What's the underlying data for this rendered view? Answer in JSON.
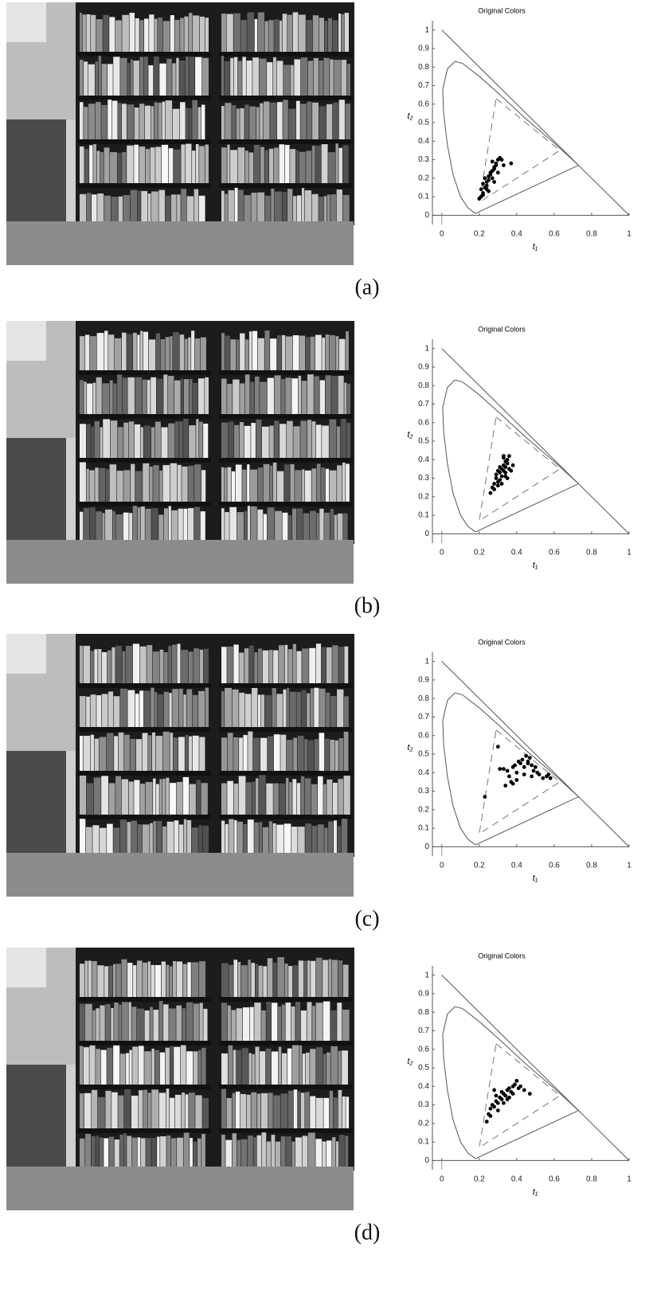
{
  "chart_data": [
    {
      "type": "scatter",
      "title": "Original Colors",
      "x_label": "t₁",
      "y_label": "t₂",
      "color": "#000000",
      "xlim": [
        -0.05,
        1
      ],
      "ylim": [
        -0.05,
        1.05
      ],
      "xticks": [
        0,
        0.2,
        0.4,
        0.6,
        0.8,
        1
      ],
      "yticks": [
        0,
        0.1,
        0.2,
        0.3,
        0.4,
        0.5,
        0.6,
        0.7,
        0.8,
        0.9,
        1
      ],
      "x": [
        0.2,
        0.21,
        0.22,
        0.21,
        0.23,
        0.22,
        0.24,
        0.23,
        0.25,
        0.24,
        0.26,
        0.25,
        0.27,
        0.26,
        0.28,
        0.27,
        0.29,
        0.28,
        0.3,
        0.29,
        0.31,
        0.3,
        0.32,
        0.22,
        0.25,
        0.28,
        0.33,
        0.37,
        0.24,
        0.27
      ],
      "values": [
        0.09,
        0.1,
        0.12,
        0.14,
        0.15,
        0.17,
        0.18,
        0.2,
        0.21,
        0.16,
        0.23,
        0.19,
        0.24,
        0.22,
        0.26,
        0.2,
        0.28,
        0.25,
        0.3,
        0.27,
        0.31,
        0.23,
        0.3,
        0.11,
        0.13,
        0.18,
        0.27,
        0.28,
        0.14,
        0.29
      ]
    },
    {
      "type": "scatter",
      "title": "Original Colors",
      "x_label": "t₁",
      "y_label": "t₂",
      "color": "#000000",
      "xlim": [
        -0.05,
        1
      ],
      "ylim": [
        -0.05,
        1.05
      ],
      "xticks": [
        0,
        0.2,
        0.4,
        0.6,
        0.8,
        1
      ],
      "yticks": [
        0,
        0.1,
        0.2,
        0.3,
        0.4,
        0.5,
        0.6,
        0.7,
        0.8,
        0.9,
        1
      ],
      "x": [
        0.26,
        0.27,
        0.28,
        0.29,
        0.3,
        0.31,
        0.32,
        0.33,
        0.34,
        0.35,
        0.36,
        0.3,
        0.31,
        0.32,
        0.33,
        0.34,
        0.35,
        0.28,
        0.29,
        0.33,
        0.34,
        0.36,
        0.37,
        0.38,
        0.32,
        0.31,
        0.35,
        0.33,
        0.3,
        0.34
      ],
      "values": [
        0.22,
        0.25,
        0.27,
        0.3,
        0.28,
        0.33,
        0.35,
        0.37,
        0.39,
        0.4,
        0.42,
        0.26,
        0.29,
        0.31,
        0.34,
        0.36,
        0.38,
        0.24,
        0.32,
        0.41,
        0.33,
        0.35,
        0.34,
        0.37,
        0.27,
        0.36,
        0.3,
        0.42,
        0.34,
        0.31
      ]
    },
    {
      "type": "scatter",
      "title": "Original Colors",
      "x_label": "t₁",
      "y_label": "t₂",
      "color": "#000000",
      "xlim": [
        -0.05,
        1
      ],
      "ylim": [
        -0.05,
        1.05
      ],
      "xticks": [
        0,
        0.2,
        0.4,
        0.6,
        0.8,
        1
      ],
      "yticks": [
        0,
        0.1,
        0.2,
        0.3,
        0.4,
        0.5,
        0.6,
        0.7,
        0.8,
        0.9,
        1
      ],
      "x": [
        0.23,
        0.3,
        0.31,
        0.34,
        0.35,
        0.36,
        0.37,
        0.38,
        0.39,
        0.4,
        0.41,
        0.42,
        0.43,
        0.44,
        0.45,
        0.46,
        0.47,
        0.48,
        0.49,
        0.5,
        0.51,
        0.52,
        0.54,
        0.56,
        0.57,
        0.58,
        0.4,
        0.44,
        0.46,
        0.33,
        0.38,
        0.48
      ],
      "values": [
        0.27,
        0.54,
        0.42,
        0.33,
        0.41,
        0.38,
        0.35,
        0.43,
        0.44,
        0.4,
        0.46,
        0.45,
        0.47,
        0.43,
        0.49,
        0.46,
        0.48,
        0.44,
        0.41,
        0.43,
        0.4,
        0.39,
        0.37,
        0.38,
        0.39,
        0.37,
        0.36,
        0.39,
        0.45,
        0.42,
        0.34,
        0.38
      ]
    },
    {
      "type": "scatter",
      "title": "Original Colors",
      "x_label": "t₁",
      "y_label": "t₂",
      "color": "#000000",
      "xlim": [
        -0.05,
        1
      ],
      "ylim": [
        -0.05,
        1.05
      ],
      "xticks": [
        0,
        0.2,
        0.4,
        0.6,
        0.8,
        1
      ],
      "yticks": [
        0,
        0.1,
        0.2,
        0.3,
        0.4,
        0.5,
        0.6,
        0.7,
        0.8,
        0.9,
        1
      ],
      "x": [
        0.24,
        0.25,
        0.26,
        0.27,
        0.28,
        0.29,
        0.3,
        0.31,
        0.32,
        0.33,
        0.34,
        0.35,
        0.36,
        0.37,
        0.38,
        0.39,
        0.4,
        0.41,
        0.42,
        0.44,
        0.47,
        0.26,
        0.28,
        0.3,
        0.32,
        0.35,
        0.38,
        0.29,
        0.33,
        0.36
      ],
      "values": [
        0.21,
        0.25,
        0.28,
        0.3,
        0.29,
        0.32,
        0.31,
        0.34,
        0.33,
        0.36,
        0.35,
        0.38,
        0.34,
        0.37,
        0.4,
        0.41,
        0.43,
        0.39,
        0.4,
        0.38,
        0.36,
        0.24,
        0.38,
        0.27,
        0.37,
        0.33,
        0.36,
        0.35,
        0.31,
        0.39
      ]
    }
  ],
  "captions": [
    "(a)",
    "(b)",
    "(c)",
    "(d)"
  ]
}
